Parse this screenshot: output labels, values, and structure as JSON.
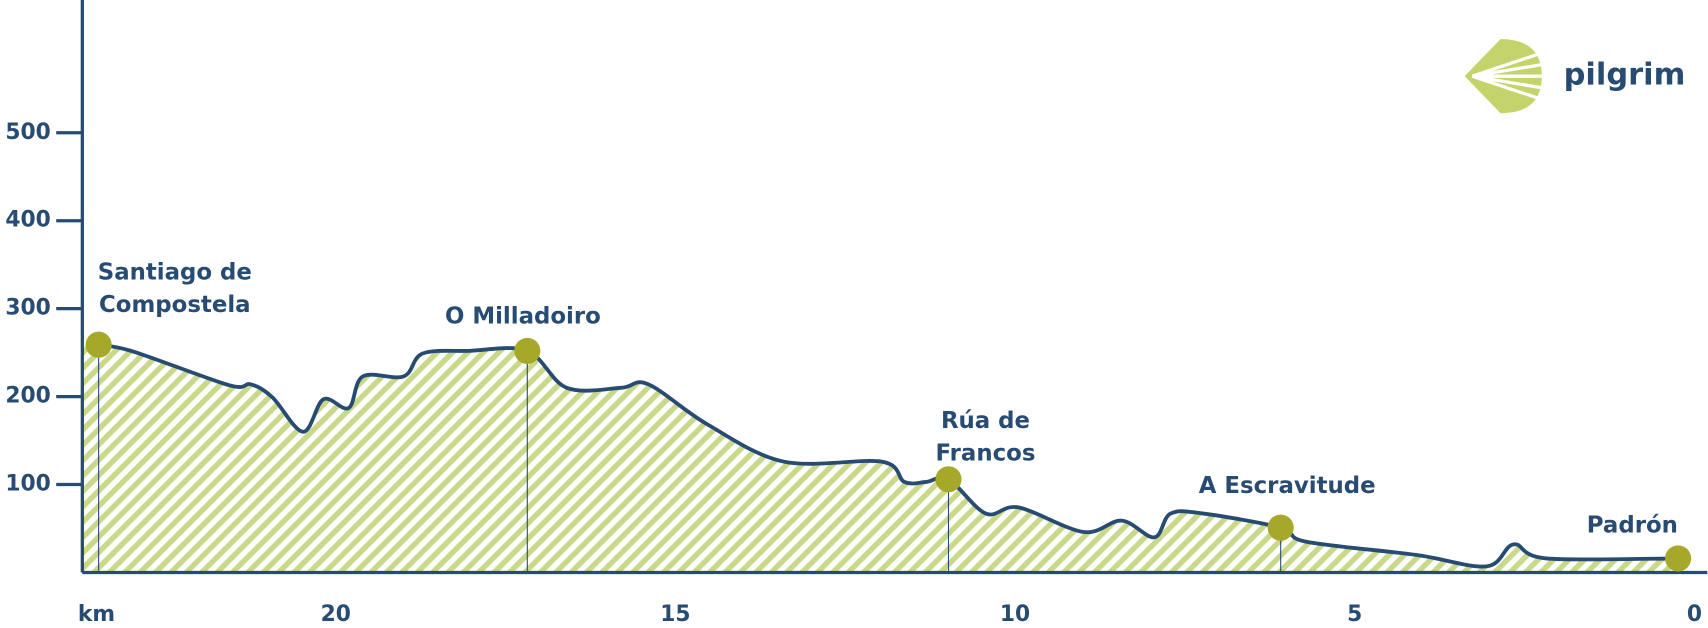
{
  "chart_data": {
    "type": "area",
    "x_label": "km",
    "brand": "pilgrim",
    "x": [
      23.49,
      22.97,
      21.57,
      21.25,
      20.93,
      20.48,
      20.18,
      19.81,
      19.6,
      19.0,
      18.72,
      18.04,
      17.18,
      16.6,
      15.8,
      15.4,
      14.52,
      13.4,
      11.96,
      11.63,
      11.31,
      10.98,
      10.43,
      9.95,
      8.99,
      8.43,
      7.95,
      7.71,
      7.23,
      6.09,
      5.71,
      4.1,
      3.06,
      2.66,
      2.18,
      0.24
    ],
    "values": [
      259,
      251,
      213,
      214,
      199,
      160,
      197,
      187,
      223,
      223,
      249,
      252,
      252,
      210,
      210,
      214,
      168,
      126,
      126,
      103,
      103,
      106,
      67,
      74,
      46,
      59,
      40,
      67,
      67,
      51,
      35,
      20,
      7,
      32,
      16,
      16
    ],
    "color": "#274b72",
    "fill_color": "#c9d98a",
    "marker_color": "#a6a82a",
    "towns": [
      {
        "label_lines": [
          "Santiago de",
          "Compostela"
        ],
        "km": 23.49,
        "elevation": 259
      },
      {
        "label_lines": [
          "O Milladoiro"
        ],
        "km": 17.18,
        "elevation": 252
      },
      {
        "label_lines": [
          "Rúa de",
          "Francos"
        ],
        "km": 10.98,
        "elevation": 106
      },
      {
        "label_lines": [
          "A Escravitude"
        ],
        "km": 6.09,
        "elevation": 51
      },
      {
        "label_lines": [
          "Padrón"
        ],
        "km": 0.24,
        "elevation": 16
      }
    ],
    "xlim": [
      23.73,
      -0.19
    ],
    "ylim": [
      0,
      651
    ],
    "xticks": [
      20,
      15,
      10,
      5,
      0
    ],
    "yticks": [
      100,
      200,
      300,
      400,
      500
    ],
    "grid": false
  }
}
